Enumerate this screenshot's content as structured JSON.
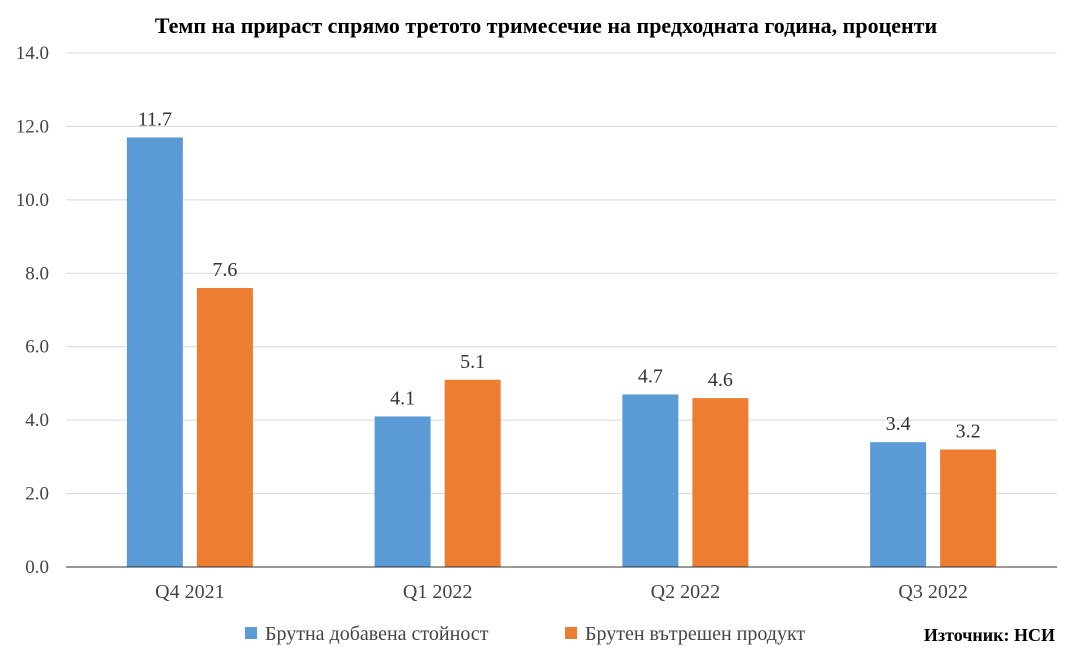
{
  "chart_data": {
    "type": "bar",
    "title": "Темп на прираст спрямо третото тримесечие на предходната година, проценти",
    "categories": [
      "Q4 2021",
      "Q1 2022",
      "Q2 2022",
      "Q3 2022"
    ],
    "series": [
      {
        "name": "Брутна добавена стойност",
        "color": "#5b9bd5",
        "values": [
          11.7,
          4.1,
          4.7,
          3.4
        ],
        "labels": [
          "11.7",
          "4.1",
          "4.7",
          "3.4"
        ]
      },
      {
        "name": "Брутен вътрешен продукт",
        "color": "#ed7d31",
        "values": [
          7.6,
          5.1,
          4.6,
          3.2
        ],
        "labels": [
          "7.6",
          "5.1",
          "4.6",
          "3.2"
        ]
      }
    ],
    "ylim": [
      0,
      14
    ],
    "yticks": [
      0,
      2,
      4,
      6,
      8,
      10,
      12,
      14
    ],
    "ytick_labels": [
      "0.0",
      "2.0",
      "4.0",
      "6.0",
      "8.0",
      "10.0",
      "12.0",
      "14.0"
    ],
    "grid": true,
    "legend_position": "bottom-center"
  },
  "source_note": "Източник: НСИ"
}
